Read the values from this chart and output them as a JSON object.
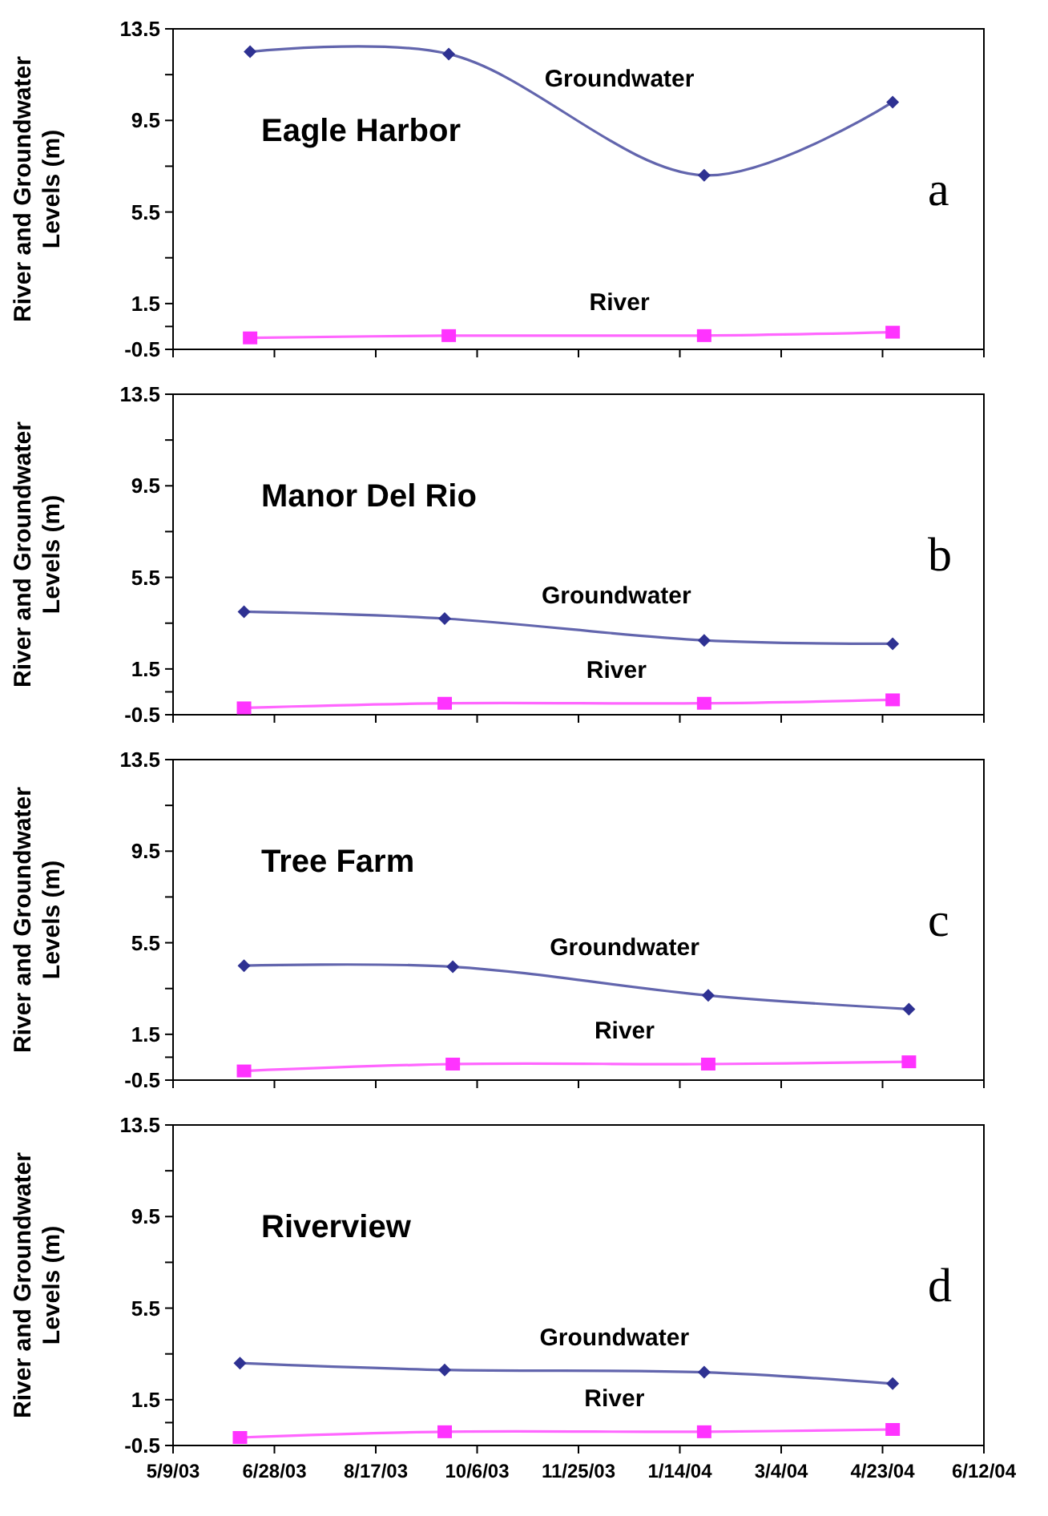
{
  "chart_data": [
    {
      "type": "line",
      "title": "Eagle Harbor",
      "ylabel": "River and Groundwater Levels (m)",
      "annotations": [
        "a"
      ],
      "xlim": [
        "2003-05-09",
        "2004-06-12"
      ],
      "xticks": [
        {
          "value": "2003-05-09",
          "label": null
        },
        {
          "value": "2003-06-28",
          "label": null
        },
        {
          "value": "2003-08-17",
          "label": null
        },
        {
          "value": "2003-10-06",
          "label": null
        },
        {
          "value": "2003-11-25",
          "label": null
        },
        {
          "value": "2004-01-14",
          "label": null
        },
        {
          "value": "2004-03-04",
          "label": null
        },
        {
          "value": "2004-04-23",
          "label": null
        },
        {
          "value": "2004-06-12",
          "label": null
        }
      ],
      "ylim": [
        -0.5,
        13.5
      ],
      "yticks": [
        -0.5,
        {
          "value": 0.5,
          "label": null
        },
        1.5,
        {
          "value": 3.5,
          "label": null
        },
        5.5,
        {
          "value": 7.5,
          "label": null
        },
        9.5,
        {
          "value": 11.5,
          "label": null
        },
        13.5
      ],
      "tick_labels": "y",
      "grid": false,
      "series": [
        {
          "name": "Groundwater",
          "color": "#2e3192",
          "marker": "diamond",
          "x": [
            "2003-06-16",
            "2003-09-22",
            "2004-01-26",
            "2004-04-28"
          ],
          "values": [
            12.5,
            12.4,
            7.1,
            10.3
          ]
        },
        {
          "name": "River",
          "color": "#ff33ff",
          "marker": "square",
          "x": [
            "2003-06-16",
            "2003-09-22",
            "2004-01-26",
            "2004-04-28"
          ],
          "values": [
            0.0,
            0.1,
            0.1,
            0.25
          ]
        }
      ]
    },
    {
      "type": "line",
      "title": "Manor Del Rio",
      "ylabel": "River and Groundwater Levels (m)",
      "annotations": [
        "b"
      ],
      "xlim": [
        "2003-05-09",
        "2004-06-12"
      ],
      "xticks": [
        {
          "value": "2003-05-09",
          "label": null
        },
        {
          "value": "2003-06-28",
          "label": null
        },
        {
          "value": "2003-08-17",
          "label": null
        },
        {
          "value": "2003-10-06",
          "label": null
        },
        {
          "value": "2003-11-25",
          "label": null
        },
        {
          "value": "2004-01-14",
          "label": null
        },
        {
          "value": "2004-03-04",
          "label": null
        },
        {
          "value": "2004-04-23",
          "label": null
        },
        {
          "value": "2004-06-12",
          "label": null
        }
      ],
      "ylim": [
        -0.5,
        13.5
      ],
      "yticks": [
        -0.5,
        {
          "value": 0.5,
          "label": null
        },
        1.5,
        {
          "value": 3.5,
          "label": null
        },
        5.5,
        {
          "value": 7.5,
          "label": null
        },
        9.5,
        {
          "value": 11.5,
          "label": null
        },
        13.5
      ],
      "tick_labels": "y",
      "grid": false,
      "series": [
        {
          "name": "Groundwater",
          "color": "#2e3192",
          "marker": "diamond",
          "x": [
            "2003-06-13",
            "2003-09-20",
            "2004-01-26",
            "2004-04-28"
          ],
          "values": [
            4.0,
            3.7,
            2.75,
            2.6
          ]
        },
        {
          "name": "River",
          "color": "#ff33ff",
          "marker": "square",
          "x": [
            "2003-06-13",
            "2003-09-20",
            "2004-01-26",
            "2004-04-28"
          ],
          "values": [
            -0.2,
            0.0,
            0.0,
            0.15
          ]
        }
      ]
    },
    {
      "type": "line",
      "title": "Tree Farm",
      "ylabel": "River and Groundwater Levels (m)",
      "annotations": [
        "c"
      ],
      "xlim": [
        "2003-05-09",
        "2004-06-12"
      ],
      "xticks": [
        {
          "value": "2003-05-09",
          "label": null
        },
        {
          "value": "2003-06-28",
          "label": null
        },
        {
          "value": "2003-08-17",
          "label": null
        },
        {
          "value": "2003-10-06",
          "label": null
        },
        {
          "value": "2003-11-25",
          "label": null
        },
        {
          "value": "2004-01-14",
          "label": null
        },
        {
          "value": "2004-03-04",
          "label": null
        },
        {
          "value": "2004-04-23",
          "label": null
        },
        {
          "value": "2004-06-12",
          "label": null
        }
      ],
      "ylim": [
        -0.5,
        13.5
      ],
      "yticks": [
        -0.5,
        {
          "value": 0.5,
          "label": null
        },
        1.5,
        {
          "value": 3.5,
          "label": null
        },
        5.5,
        {
          "value": 7.5,
          "label": null
        },
        9.5,
        {
          "value": 11.5,
          "label": null
        },
        13.5
      ],
      "tick_labels": "y",
      "grid": false,
      "series": [
        {
          "name": "Groundwater",
          "color": "#2e3192",
          "marker": "diamond",
          "x": [
            "2003-06-13",
            "2003-09-24",
            "2004-01-28",
            "2004-05-06"
          ],
          "values": [
            4.5,
            4.45,
            3.2,
            2.6
          ]
        },
        {
          "name": "River",
          "color": "#ff33ff",
          "marker": "square",
          "x": [
            "2003-06-13",
            "2003-09-24",
            "2004-01-28",
            "2004-05-06"
          ],
          "values": [
            -0.1,
            0.2,
            0.2,
            0.3
          ]
        }
      ]
    },
    {
      "type": "line",
      "title": "Riverview",
      "ylabel": "River and Groundwater Levels (m)",
      "annotations": [
        "d"
      ],
      "xlim": [
        "2003-05-09",
        "2004-06-12"
      ],
      "xticks": [
        {
          "value": "2003-05-09",
          "label": "5/9/03"
        },
        {
          "value": "2003-06-28",
          "label": "6/28/03"
        },
        {
          "value": "2003-08-17",
          "label": "8/17/03"
        },
        {
          "value": "2003-10-06",
          "label": "10/6/03"
        },
        {
          "value": "2003-11-25",
          "label": "11/25/03"
        },
        {
          "value": "2004-01-14",
          "label": "1/14/04"
        },
        {
          "value": "2004-03-04",
          "label": "3/4/04"
        },
        {
          "value": "2004-04-23",
          "label": "4/23/04"
        },
        {
          "value": "2004-06-12",
          "label": "6/12/04"
        }
      ],
      "ylim": [
        -0.5,
        13.5
      ],
      "yticks": [
        -0.5,
        {
          "value": 0.5,
          "label": null
        },
        1.5,
        {
          "value": 3.5,
          "label": null
        },
        5.5,
        {
          "value": 7.5,
          "label": null
        },
        9.5,
        {
          "value": 11.5,
          "label": null
        },
        13.5
      ],
      "grid": false,
      "series": [
        {
          "name": "Groundwater",
          "color": "#2e3192",
          "marker": "diamond",
          "x": [
            "2003-06-11",
            "2003-09-20",
            "2004-01-26",
            "2004-04-28"
          ],
          "values": [
            3.1,
            2.8,
            2.7,
            2.2
          ]
        },
        {
          "name": "River",
          "color": "#ff33ff",
          "marker": "square",
          "x": [
            "2003-06-11",
            "2003-09-20",
            "2004-01-26",
            "2004-04-28"
          ],
          "values": [
            -0.15,
            0.1,
            0.1,
            0.2
          ]
        }
      ]
    }
  ]
}
